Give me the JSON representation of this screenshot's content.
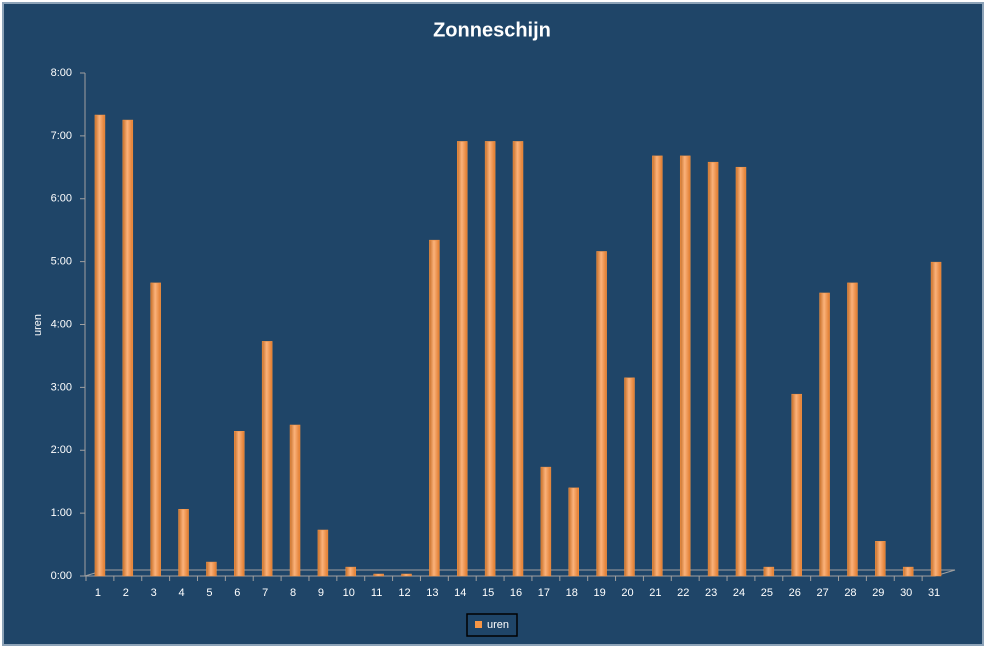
{
  "chart_data": {
    "type": "bar",
    "title": "Zonneschijn",
    "y_label": "uren",
    "categories": [
      "1",
      "2",
      "3",
      "4",
      "5",
      "6",
      "7",
      "8",
      "9",
      "10",
      "11",
      "12",
      "13",
      "14",
      "15",
      "16",
      "17",
      "18",
      "19",
      "20",
      "21",
      "22",
      "23",
      "24",
      "25",
      "26",
      "27",
      "28",
      "29",
      "30",
      "31"
    ],
    "series": [
      {
        "name": "uren",
        "color": "#f79646",
        "values": [
          7.3,
          7.22,
          4.63,
          1.03,
          0.19,
          2.27,
          3.7,
          2.37,
          0.7,
          0.11,
          0,
          0,
          5.31,
          6.88,
          6.88,
          6.88,
          1.7,
          1.37,
          5.13,
          3.12,
          6.65,
          6.65,
          6.55,
          6.47,
          0.11,
          2.86,
          4.47,
          4.63,
          0.52,
          0.11,
          4.96
        ]
      }
    ],
    "ylim": [
      0,
      8
    ],
    "yticks": [
      {
        "value": 0,
        "label": "0:00"
      },
      {
        "value": 1,
        "label": "1:00"
      },
      {
        "value": 2,
        "label": "2:00"
      },
      {
        "value": 3,
        "label": "3:00"
      },
      {
        "value": 4,
        "label": "4:00"
      },
      {
        "value": 5,
        "label": "5:00"
      },
      {
        "value": 6,
        "label": "6:00"
      },
      {
        "value": 7,
        "label": "7:00"
      },
      {
        "value": 8,
        "label": "8:00"
      }
    ]
  }
}
